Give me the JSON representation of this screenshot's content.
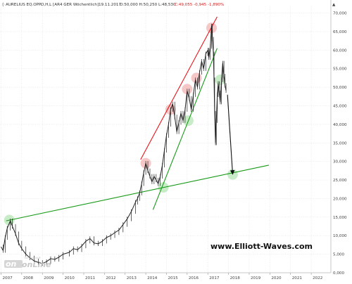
{
  "header": {
    "symbol": "AURELIUS EQ.OPP.",
    "params": "O,H,L [AR4 GER Wöchentlich]",
    "date": "19.11.2017",
    "ohl": "O:50,000 H:50,250 L:48,530",
    "close_change": "C:49,055 -0,945 -1,890%"
  },
  "watermark": {
    "text": "www.Elliott-Waves.com"
  },
  "logo": {
    "small_text": "Tradesignal®",
    "big_text": "onLine"
  },
  "colors": {
    "price": "#222222",
    "red_channel": "#e8141a",
    "green_lines": "#169a16",
    "forecast_arrow": "#111111",
    "up_marker": "#f1b4b4",
    "down_marker": "#b6e4b6",
    "grid": "#dcdcdc"
  },
  "chart_data": {
    "type": "line",
    "title": "",
    "xlabel": "",
    "ylabel": "",
    "x_ticks": [
      "2007",
      "2008",
      "2009",
      "2010",
      "2011",
      "2012",
      "2013",
      "2014",
      "2015",
      "2016",
      "2017",
      "2018",
      "2019",
      "2020",
      "2021",
      "2022"
    ],
    "y_tick_labels": [
      "0,000",
      "5,000",
      "10,000",
      "15,000",
      "20,000",
      "25,000",
      "30,000",
      "35,000",
      "40,000",
      "45,000",
      "50,000",
      "55,000",
      "60,000",
      "65,000",
      "70,000"
    ],
    "ylim": [
      0,
      72
    ],
    "xlim": [
      2006.95,
      2022.95
    ],
    "grid": true,
    "series": [
      {
        "kind": "price_weekly",
        "points": [
          [
            2007.0,
            7.0
          ],
          [
            2007.1,
            6.0
          ],
          [
            2007.2,
            9.5
          ],
          [
            2007.3,
            12.0
          ],
          [
            2007.45,
            14.0
          ],
          [
            2007.55,
            12.5
          ],
          [
            2007.7,
            10.5
          ],
          [
            2007.85,
            8.0
          ],
          [
            2008.0,
            6.5
          ],
          [
            2008.2,
            5.0
          ],
          [
            2008.4,
            4.0
          ],
          [
            2008.6,
            3.2
          ],
          [
            2008.8,
            2.8
          ],
          [
            2009.0,
            2.5
          ],
          [
            2009.2,
            3.0
          ],
          [
            2009.4,
            3.8
          ],
          [
            2009.6,
            3.6
          ],
          [
            2009.8,
            4.2
          ],
          [
            2010.0,
            5.0
          ],
          [
            2010.3,
            5.5
          ],
          [
            2010.5,
            6.5
          ],
          [
            2010.7,
            6.2
          ],
          [
            2010.9,
            7.2
          ],
          [
            2011.1,
            8.5
          ],
          [
            2011.3,
            9.2
          ],
          [
            2011.5,
            8.0
          ],
          [
            2011.7,
            7.8
          ],
          [
            2011.9,
            8.5
          ],
          [
            2012.1,
            9.5
          ],
          [
            2012.3,
            10.0
          ],
          [
            2012.5,
            10.8
          ],
          [
            2012.7,
            11.5
          ],
          [
            2012.9,
            13.0
          ],
          [
            2013.1,
            14.5
          ],
          [
            2013.3,
            16.5
          ],
          [
            2013.5,
            19.0
          ],
          [
            2013.6,
            20.0
          ],
          [
            2013.7,
            21.5
          ],
          [
            2013.8,
            24.0
          ],
          [
            2013.9,
            27.0
          ],
          [
            2014.0,
            29.5
          ],
          [
            2014.1,
            27.5
          ],
          [
            2014.2,
            26.0
          ],
          [
            2014.3,
            24.5
          ],
          [
            2014.4,
            26.0
          ],
          [
            2014.5,
            25.0
          ],
          [
            2014.6,
            24.0
          ],
          [
            2014.7,
            26.0
          ],
          [
            2014.8,
            29.0
          ],
          [
            2014.9,
            33.0
          ],
          [
            2015.0,
            37.0
          ],
          [
            2015.1,
            40.0
          ],
          [
            2015.2,
            44.0
          ],
          [
            2015.3,
            45.5
          ],
          [
            2015.4,
            42.0
          ],
          [
            2015.5,
            38.0
          ],
          [
            2015.6,
            40.5
          ],
          [
            2015.7,
            43.0
          ],
          [
            2015.8,
            41.0
          ],
          [
            2015.9,
            44.0
          ],
          [
            2016.0,
            49.0
          ],
          [
            2016.1,
            47.0
          ],
          [
            2016.2,
            44.0
          ],
          [
            2016.3,
            48.0
          ],
          [
            2016.4,
            52.0
          ],
          [
            2016.5,
            50.0
          ],
          [
            2016.6,
            54.0
          ],
          [
            2016.7,
            57.0
          ],
          [
            2016.8,
            55.0
          ],
          [
            2016.9,
            59.0
          ],
          [
            2017.0,
            60.0
          ],
          [
            2017.05,
            58.0
          ],
          [
            2017.12,
            61.0
          ],
          [
            2017.18,
            66.5
          ],
          [
            2017.22,
            63.0
          ],
          [
            2017.27,
            59.0
          ],
          [
            2017.3,
            52.0
          ],
          [
            2017.33,
            43.0
          ],
          [
            2017.37,
            35.0
          ],
          [
            2017.41,
            41.0
          ],
          [
            2017.46,
            48.0
          ],
          [
            2017.5,
            51.0
          ],
          [
            2017.55,
            48.5
          ],
          [
            2017.6,
            46.0
          ],
          [
            2017.66,
            52.0
          ],
          [
            2017.72,
            56.5
          ],
          [
            2017.78,
            53.0
          ],
          [
            2017.83,
            50.5
          ],
          [
            2017.88,
            49.1
          ]
        ]
      },
      {
        "kind": "trendline",
        "name": "",
        "color_key": "red_channel",
        "x": [
          2013.75,
          2017.45
        ],
        "y": [
          30.5,
          69.0
        ]
      },
      {
        "kind": "trendline",
        "name": "",
        "color_key": "green_lines",
        "x": [
          2014.35,
          2017.45
        ],
        "y": [
          17.0,
          60.5
        ]
      },
      {
        "kind": "trendline",
        "name": "",
        "color_key": "green_lines",
        "x": [
          2007.25,
          2019.95
        ],
        "y": [
          14.0,
          29.0
        ]
      },
      {
        "kind": "arrow",
        "name": "",
        "color_key": "forecast_arrow",
        "x": [
          2017.95,
          2018.2
        ],
        "y": [
          48.0,
          26.6
        ]
      }
    ],
    "markers": [
      {
        "kind": "up",
        "x": 2014.0,
        "y": 29.5
      },
      {
        "kind": "up",
        "x": 2015.2,
        "y": 44.0
      },
      {
        "kind": "up",
        "x": 2016.0,
        "y": 49.5
      },
      {
        "kind": "up",
        "x": 2016.45,
        "y": 52.5
      },
      {
        "kind": "up",
        "x": 2017.18,
        "y": 66.0
      },
      {
        "kind": "down",
        "x": 2007.4,
        "y": 14.2
      },
      {
        "kind": "down",
        "x": 2014.85,
        "y": 23.0
      },
      {
        "kind": "down",
        "x": 2016.05,
        "y": 41.0
      },
      {
        "kind": "down",
        "x": 2017.6,
        "y": 52.0
      },
      {
        "kind": "down",
        "x": 2018.2,
        "y": 26.5
      }
    ]
  }
}
